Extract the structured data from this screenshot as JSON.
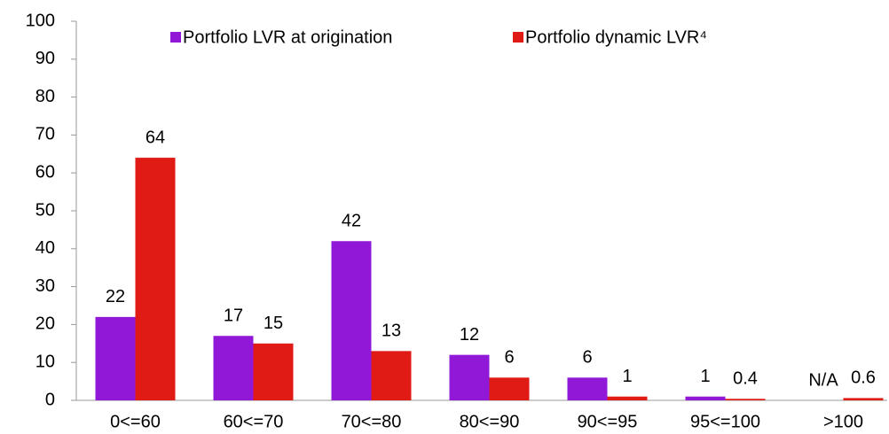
{
  "chart_data": {
    "type": "bar",
    "categories": [
      "0<=60",
      "60<=70",
      "70<=80",
      "80<=90",
      "90<=95",
      "95<=100",
      ">100"
    ],
    "series": [
      {
        "name": "Portfolio LVR at origination",
        "color": "#9218d8",
        "values": [
          22,
          17,
          42,
          12,
          6,
          1,
          null
        ],
        "value_labels": [
          "22",
          "17",
          "42",
          "12",
          "6",
          "1",
          "N/A"
        ]
      },
      {
        "name": "Portfolio dynamic LVR⁴",
        "color": "#e01b16",
        "values": [
          64,
          15,
          13,
          6,
          1,
          0.4,
          0.6
        ]
      }
    ],
    "ylim": [
      0,
      100
    ],
    "yticks": [
      0,
      10,
      20,
      30,
      40,
      50,
      60,
      70,
      80,
      90,
      100
    ],
    "grid": false,
    "legend": "top"
  }
}
